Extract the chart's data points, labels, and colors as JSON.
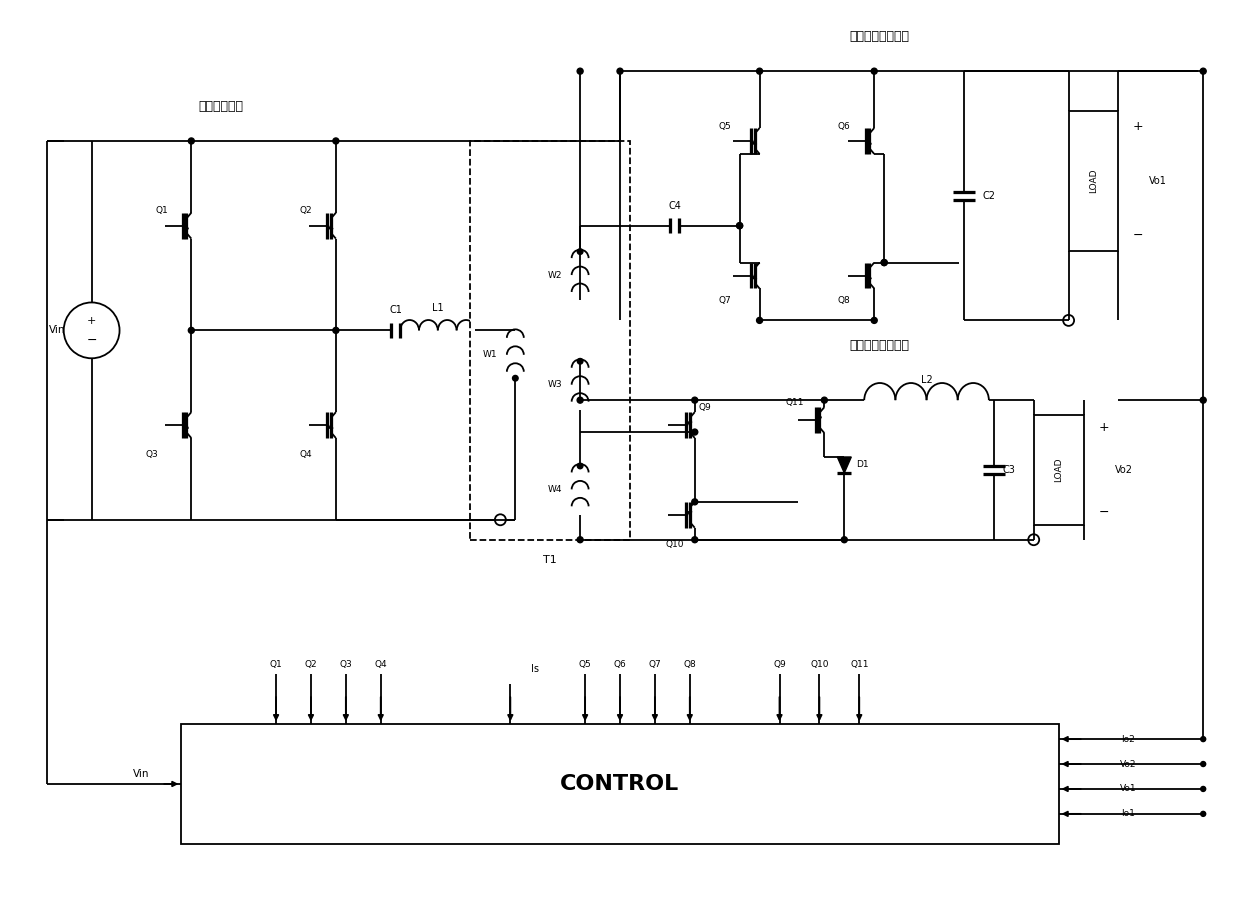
{
  "bg": "#ffffff",
  "lc": "#000000",
  "lw": 1.3,
  "primary_label": "原边转换电路",
  "sec1_label": "副边第一转换电路",
  "sec2_label": "副边第二转换电路",
  "ctrl_label": "CONTROL",
  "Vin": "Vin",
  "Is": "Is",
  "T1": "T1",
  "L1": "L1",
  "L2": "L2",
  "C1": "C1",
  "C2": "C2",
  "C3": "C3",
  "C4": "C4",
  "D1": "D1",
  "W1": "W1",
  "W2": "W2",
  "W3": "W3",
  "W4": "W4",
  "Vo1": "Vo1",
  "Vo2": "Vo2",
  "Io1": "Io1",
  "Io2": "Io2",
  "Q_primary": [
    "Q1",
    "Q2",
    "Q3",
    "Q4"
  ],
  "Q_sec1": [
    "Q5",
    "Q6",
    "Q7",
    "Q8"
  ],
  "Q_sec2_half": [
    "Q9",
    "Q10",
    "Q11"
  ]
}
